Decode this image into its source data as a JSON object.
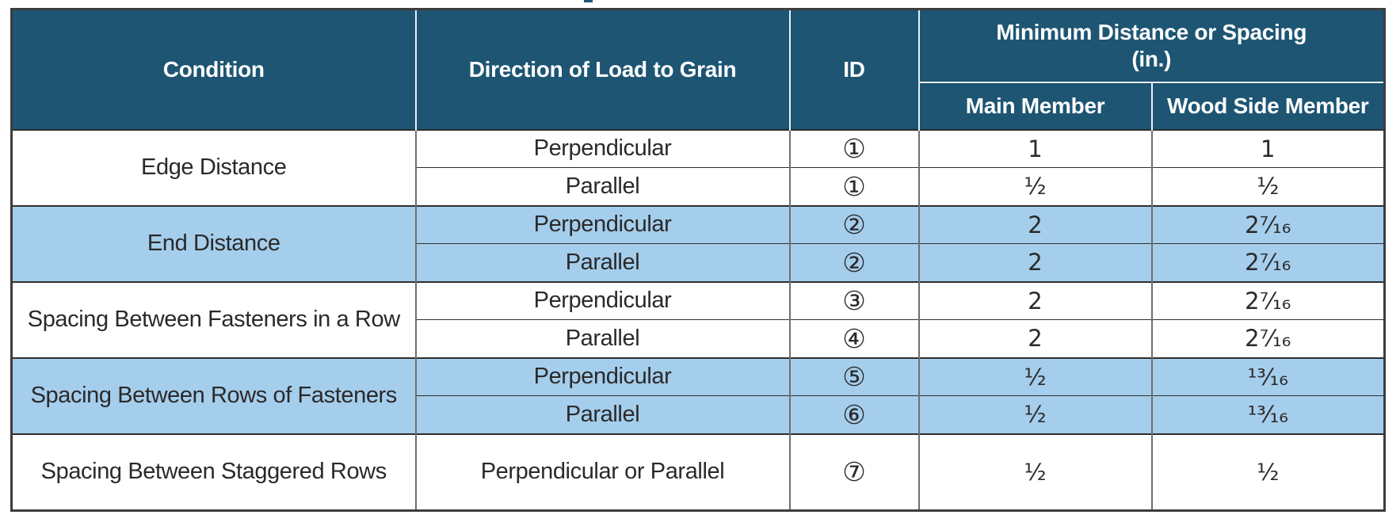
{
  "page": {
    "background": "#ffffff"
  },
  "colors": {
    "header_bg": "#1D5573",
    "header_text": "#FFFFFF",
    "highlight_row_bg": "#A5CEEC",
    "default_row_bg": "#FFFFFF",
    "body_text": "#2B292A",
    "horizontal_line": "#2E2E2E",
    "vertical_line_body": "#6F6F6F",
    "vertical_line_header": "#E9EFF4",
    "outer_border": "#3D3D3D"
  },
  "table": {
    "headers": {
      "condition": "Condition",
      "direction": "Direction of Load to Grain",
      "id": "ID",
      "spacing_group": "Minimum Distance or Spacing",
      "spacing_unit": "(in.)",
      "main_member": "Main Member",
      "wood_side_member": "Wood Side Member"
    },
    "sections": [
      {
        "condition": "Edge Distance",
        "highlight": false,
        "rows": [
          {
            "direction": "Perpendicular",
            "id": "①",
            "main": "1",
            "wood": "1"
          },
          {
            "direction": "Parallel",
            "id": "①",
            "main": "½",
            "wood": "½"
          }
        ]
      },
      {
        "condition": "End Distance",
        "highlight": true,
        "rows": [
          {
            "direction": "Perpendicular",
            "id": "②",
            "main": "2",
            "wood": "2⁷⁄₁₆"
          },
          {
            "direction": "Parallel",
            "id": "②",
            "main": "2",
            "wood": "2⁷⁄₁₆"
          }
        ]
      },
      {
        "condition": "Spacing Between Fasteners in a Row",
        "highlight": false,
        "rows": [
          {
            "direction": "Perpendicular",
            "id": "③",
            "main": "2",
            "wood": "2⁷⁄₁₆"
          },
          {
            "direction": "Parallel",
            "id": "④",
            "main": "2",
            "wood": "2⁷⁄₁₆"
          }
        ]
      },
      {
        "condition": "Spacing Between Rows of Fasteners",
        "highlight": true,
        "rows": [
          {
            "direction": "Perpendicular",
            "id": "⑤",
            "main": "½",
            "wood": "¹³⁄₁₆"
          },
          {
            "direction": "Parallel",
            "id": "⑥",
            "main": "½",
            "wood": "¹³⁄₁₆"
          }
        ]
      },
      {
        "condition": "Spacing Between Staggered Rows",
        "highlight": false,
        "rows": [
          {
            "direction": "Perpendicular or Parallel",
            "id": "⑦",
            "main": "½",
            "wood": "½"
          }
        ]
      }
    ]
  }
}
